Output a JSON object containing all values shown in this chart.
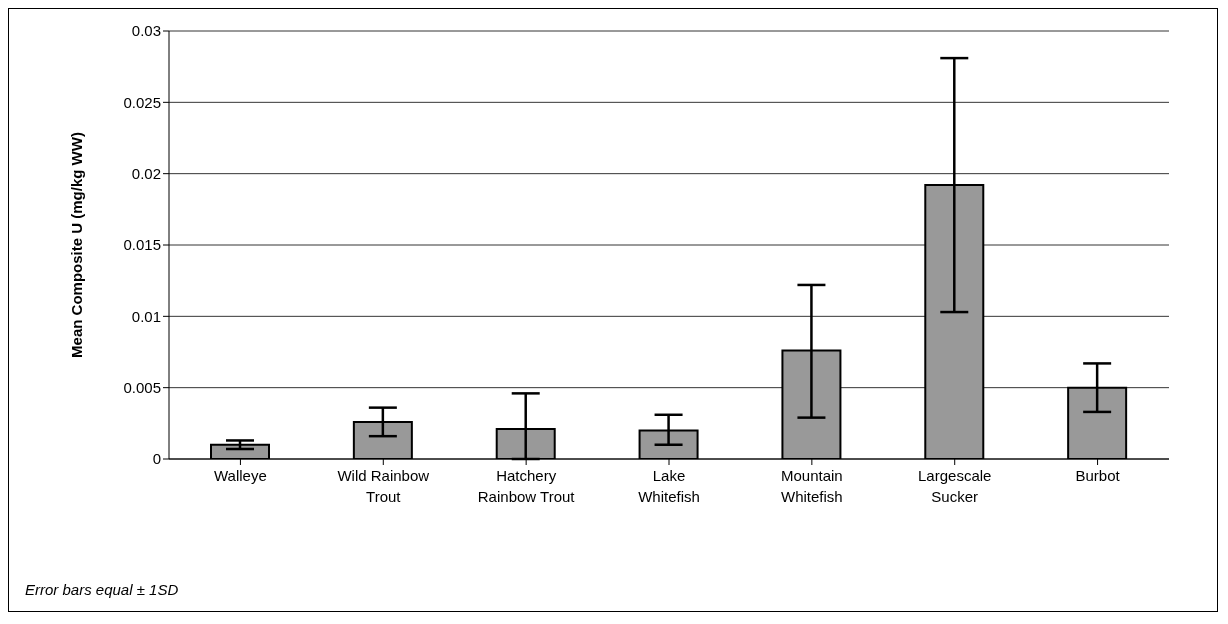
{
  "chart_data": {
    "type": "bar",
    "ylabel": "Mean Composite U (mg/kg WW)",
    "categories": [
      "Walleye",
      "Wild Rainbow Trout",
      "Hatchery Rainbow Trout",
      "Lake Whitefish",
      "Mountain Whitefish",
      "Largescale Sucker",
      "Burbot"
    ],
    "values": [
      0.001,
      0.0026,
      0.0021,
      0.002,
      0.0076,
      0.0192,
      0.005
    ],
    "errors": [
      [
        0.0007,
        0.0013
      ],
      [
        0.0016,
        0.0036
      ],
      [
        0,
        0.0046
      ],
      [
        0.001,
        0.0031
      ],
      [
        0.0029,
        0.0122
      ],
      [
        0.0103,
        0.0281
      ],
      [
        0.0033,
        0.0067
      ]
    ],
    "color": "#999999",
    "ylim": [
      0,
      0.03
    ],
    "yticks": [
      0,
      0.005,
      0.01,
      0.015,
      0.02,
      0.025,
      0.03
    ],
    "grid": "y",
    "legend": false,
    "annotations": [
      "Error bars equal ± 1SD"
    ]
  }
}
